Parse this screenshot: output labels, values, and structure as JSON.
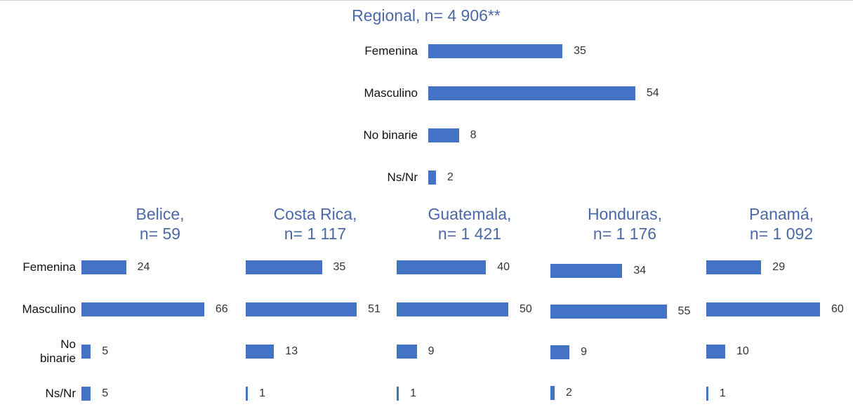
{
  "chart_data": [
    {
      "type": "bar",
      "title": "Regional, n= 4 906**",
      "categories": [
        "Femenina",
        "Masculino",
        "No binarie",
        "Ns/Nr"
      ],
      "values": [
        35,
        54,
        8,
        2
      ],
      "color": "#4472c4"
    },
    {
      "type": "bar",
      "title": "Belice,\nn= 59",
      "categories": [
        "Femenina",
        "Masculino",
        "No\nbinarie",
        "Ns/Nr"
      ],
      "values": [
        24,
        66,
        5,
        5
      ],
      "color": "#4472c4"
    },
    {
      "type": "bar",
      "title": "Costa Rica,\nn= 1 117",
      "values": [
        35,
        51,
        13,
        1
      ],
      "color": "#4472c4"
    },
    {
      "type": "bar",
      "title": "Guatemala,\nn= 1 421",
      "values": [
        40,
        50,
        9,
        1
      ],
      "color": "#4472c4"
    },
    {
      "type": "bar",
      "title": "Honduras,\nn= 1 176",
      "values": [
        34,
        55,
        9,
        2
      ],
      "color": "#4472c4"
    },
    {
      "type": "bar",
      "title": "Panamá,\nn= 1 092",
      "values": [
        29,
        60,
        10,
        1
      ],
      "color": "#4472c4"
    }
  ]
}
